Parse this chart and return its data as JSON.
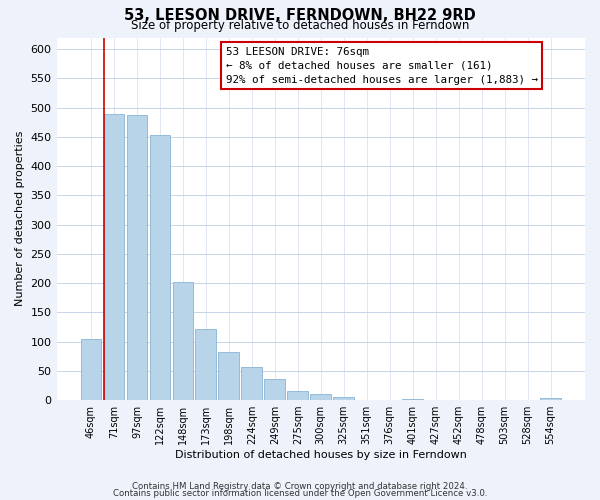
{
  "title": "53, LEESON DRIVE, FERNDOWN, BH22 9RD",
  "subtitle": "Size of property relative to detached houses in Ferndown",
  "xlabel": "Distribution of detached houses by size in Ferndown",
  "ylabel": "Number of detached properties",
  "bar_labels": [
    "46sqm",
    "71sqm",
    "97sqm",
    "122sqm",
    "148sqm",
    "173sqm",
    "198sqm",
    "224sqm",
    "249sqm",
    "275sqm",
    "300sqm",
    "325sqm",
    "351sqm",
    "376sqm",
    "401sqm",
    "427sqm",
    "452sqm",
    "478sqm",
    "503sqm",
    "528sqm",
    "554sqm"
  ],
  "bar_values": [
    105,
    490,
    488,
    453,
    202,
    122,
    83,
    57,
    36,
    15,
    10,
    5,
    0,
    0,
    2,
    0,
    0,
    0,
    0,
    0,
    4
  ],
  "bar_color": "#b8d4e8",
  "bar_edge_color": "#8ab4d4",
  "highlight_line_color": "#cc0000",
  "annotation_title": "53 LEESON DRIVE: 76sqm",
  "annotation_line1": "← 8% of detached houses are smaller (161)",
  "annotation_line2": "92% of semi-detached houses are larger (1,883) →",
  "annotation_box_color": "#ffffff",
  "annotation_box_edge": "#cc0000",
  "ylim": [
    0,
    620
  ],
  "yticks": [
    0,
    50,
    100,
    150,
    200,
    250,
    300,
    350,
    400,
    450,
    500,
    550,
    600
  ],
  "footer1": "Contains HM Land Registry data © Crown copyright and database right 2024.",
  "footer2": "Contains public sector information licensed under the Open Government Licence v3.0.",
  "background_color": "#eef2fb",
  "plot_bg_color": "#ffffff",
  "grid_color": "#c8d4e8"
}
